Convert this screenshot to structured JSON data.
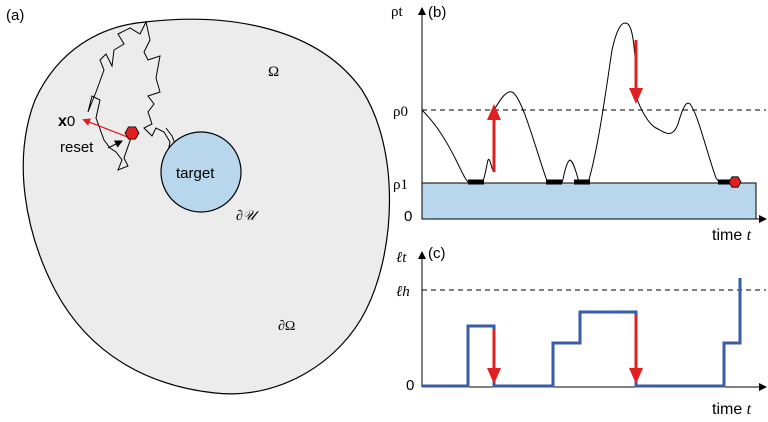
{
  "panel_a": {
    "label": "(a)",
    "domain_label": "Ω",
    "start_label_bold": "x",
    "start_label_sub": "0",
    "reset_label": "reset",
    "target_label": "target",
    "target_boundary_label": "∂𝒰",
    "domain_boundary_label": "∂Ω",
    "colors": {
      "domain_fill": "#ececec",
      "target_fill": "#b9d7ec",
      "reset_arrow": "#e02020",
      "particle": "#e02020"
    }
  },
  "panel_b": {
    "label": "(b)",
    "ylabel": "ρt",
    "tick_rho0": "ρ0",
    "tick_rho1": "ρ1",
    "tick_zero": "0",
    "xlabel_prefix": "time ",
    "xlabel_var": "t",
    "colors": {
      "band_fill": "#b9d7ec",
      "arrow": "#e02020"
    }
  },
  "panel_c": {
    "label": "(c)",
    "ylabel": "ℓt",
    "tick_h": "ℓh",
    "tick_zero": "0",
    "xlabel_prefix": "time ",
    "xlabel_var": "t",
    "colors": {
      "step_line": "#3a5ba8",
      "arrow": "#e02020"
    }
  }
}
